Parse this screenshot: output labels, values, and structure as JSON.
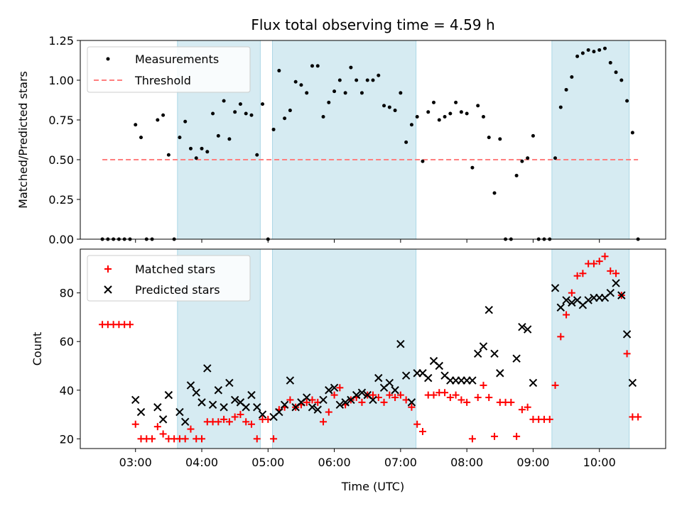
{
  "chart_data": [
    {
      "type": "scatter",
      "title": "Flux total observing time = 4.59 h",
      "xlabel": "",
      "ylabel": "Matched/Predicted stars",
      "xlim": [
        "02:10",
        "11:00"
      ],
      "ylim": [
        0,
        1.25
      ],
      "yticks": [
        0.0,
        0.25,
        0.5,
        0.75,
        1.0,
        1.25
      ],
      "ytick_labels": [
        "0.00",
        "0.25",
        "0.50",
        "0.75",
        "1.00",
        "1.25"
      ],
      "legend_position": "top-left",
      "grid": false,
      "shaded_intervals": [
        [
          "03:38",
          "04:53"
        ],
        [
          "05:04",
          "07:14"
        ],
        [
          "09:17",
          "10:27"
        ]
      ],
      "series": [
        {
          "name": "Measurements",
          "marker": "dot",
          "color": "#000000",
          "x": [
            "02:30",
            "02:35",
            "02:40",
            "02:45",
            "02:50",
            "02:55",
            "03:00",
            "03:05",
            "03:10",
            "03:15",
            "03:20",
            "03:25",
            "03:30",
            "03:35",
            "03:40",
            "03:45",
            "03:50",
            "03:55",
            "04:00",
            "04:05",
            "04:10",
            "04:15",
            "04:20",
            "04:25",
            "04:30",
            "04:35",
            "04:40",
            "04:45",
            "04:50",
            "04:55",
            "05:00",
            "05:05",
            "05:10",
            "05:15",
            "05:20",
            "05:25",
            "05:30",
            "05:35",
            "05:40",
            "05:45",
            "05:50",
            "05:55",
            "06:00",
            "06:05",
            "06:10",
            "06:15",
            "06:20",
            "06:25",
            "06:30",
            "06:35",
            "06:40",
            "06:45",
            "06:50",
            "06:55",
            "07:00",
            "07:05",
            "07:10",
            "07:15",
            "07:20",
            "07:25",
            "07:30",
            "07:35",
            "07:40",
            "07:45",
            "07:50",
            "07:55",
            "08:00",
            "08:05",
            "08:10",
            "08:15",
            "08:20",
            "08:25",
            "08:30",
            "08:35",
            "08:40",
            "08:45",
            "08:50",
            "08:55",
            "09:00",
            "09:05",
            "09:10",
            "09:15",
            "09:20",
            "09:25",
            "09:30",
            "09:35",
            "09:40",
            "09:45",
            "09:50",
            "09:55",
            "10:00",
            "10:05",
            "10:10",
            "10:15",
            "10:20",
            "10:25",
            "10:30",
            "10:35"
          ],
          "y": [
            0,
            0,
            0,
            0,
            0,
            0,
            0.72,
            0.64,
            0,
            0,
            0.75,
            0.78,
            0.53,
            0,
            0.64,
            0.74,
            0.57,
            0.51,
            0.57,
            0.55,
            0.79,
            0.65,
            0.87,
            0.63,
            0.8,
            0.85,
            0.79,
            0.78,
            0.53,
            0.85,
            0,
            0.69,
            1.06,
            0.76,
            0.81,
            0.99,
            0.97,
            0.92,
            1.09,
            1.09,
            0.77,
            0.86,
            0.93,
            1.0,
            0.92,
            1.08,
            1.0,
            0.92,
            1.0,
            1.0,
            1.03,
            0.84,
            0.83,
            0.81,
            0.92,
            0.61,
            0.72,
            0.77,
            0.49,
            0.8,
            0.86,
            0.75,
            0.77,
            0.79,
            0.86,
            0.8,
            0.79,
            0.45,
            0.84,
            0.77,
            0.64,
            0.29,
            0.63,
            0,
            0,
            0.4,
            0.49,
            0.51,
            0.65,
            0,
            0,
            0,
            0.51,
            0.83,
            0.94,
            1.02,
            1.15,
            1.17,
            1.19,
            1.18,
            1.19,
            1.2,
            1.11,
            1.05,
            1.0,
            0.87,
            0.67,
            0
          ]
        },
        {
          "name": "Threshold",
          "style": "dashed",
          "color": "#ff7f7f",
          "x": [
            "02:30",
            "10:35"
          ],
          "y": [
            0.5,
            0.5
          ]
        }
      ]
    },
    {
      "type": "scatter",
      "title": "",
      "xlabel": "Time (UTC)",
      "ylabel": "Count",
      "xlim": [
        "02:10",
        "11:00"
      ],
      "ylim": [
        16,
        98
      ],
      "yticks": [
        20,
        40,
        60,
        80
      ],
      "ytick_labels": [
        "20",
        "40",
        "60",
        "80"
      ],
      "xticks": [
        "03:00",
        "04:00",
        "05:00",
        "06:00",
        "07:00",
        "08:00",
        "09:00",
        "10:00"
      ],
      "xtick_labels": [
        "03:00",
        "04:00",
        "05:00",
        "06:00",
        "07:00",
        "08:00",
        "09:00",
        "10:00"
      ],
      "legend_position": "top-left",
      "grid": false,
      "shaded_intervals": [
        [
          "03:38",
          "04:53"
        ],
        [
          "05:04",
          "07:14"
        ],
        [
          "09:17",
          "10:27"
        ]
      ],
      "series": [
        {
          "name": "Matched stars",
          "marker": "plus",
          "color": "#ff0000",
          "x": [
            "02:30",
            "02:35",
            "02:40",
            "02:45",
            "02:50",
            "02:55",
            "03:00",
            "03:05",
            "03:10",
            "03:15",
            "03:20",
            "03:25",
            "03:30",
            "03:35",
            "03:40",
            "03:45",
            "03:50",
            "03:55",
            "04:00",
            "04:05",
            "04:10",
            "04:15",
            "04:20",
            "04:25",
            "04:30",
            "04:35",
            "04:40",
            "04:45",
            "04:50",
            "04:55",
            "05:00",
            "05:05",
            "05:10",
            "05:15",
            "05:20",
            "05:25",
            "05:30",
            "05:35",
            "05:40",
            "05:45",
            "05:50",
            "05:55",
            "06:00",
            "06:05",
            "06:10",
            "06:15",
            "06:20",
            "06:25",
            "06:30",
            "06:35",
            "06:40",
            "06:45",
            "06:50",
            "06:55",
            "07:00",
            "07:05",
            "07:10",
            "07:15",
            "07:20",
            "07:25",
            "07:30",
            "07:35",
            "07:40",
            "07:45",
            "07:50",
            "07:55",
            "08:00",
            "08:05",
            "08:10",
            "08:15",
            "08:20",
            "08:25",
            "08:30",
            "08:35",
            "08:40",
            "08:45",
            "08:50",
            "08:55",
            "09:00",
            "09:05",
            "09:10",
            "09:15",
            "09:20",
            "09:25",
            "09:30",
            "09:35",
            "09:40",
            "09:45",
            "09:50",
            "09:55",
            "10:00",
            "10:05",
            "10:10",
            "10:15",
            "10:20",
            "10:25",
            "10:30",
            "10:35"
          ],
          "y": [
            67,
            67,
            67,
            67,
            67,
            67,
            26,
            20,
            20,
            20,
            25,
            22,
            20,
            20,
            20,
            20,
            24,
            20,
            20,
            27,
            27,
            27,
            28,
            27,
            29,
            30,
            27,
            26,
            20,
            28,
            28,
            20,
            32,
            33,
            36,
            33,
            34,
            35,
            36,
            35,
            27,
            31,
            38,
            41,
            34,
            36,
            37,
            35,
            38,
            38,
            37,
            35,
            38,
            37,
            38,
            36,
            33,
            26,
            23,
            38,
            38,
            39,
            39,
            37,
            38,
            36,
            35,
            20,
            37,
            42,
            37,
            21,
            35,
            35,
            35,
            21,
            32,
            33,
            28,
            28,
            28,
            28,
            42,
            62,
            71,
            80,
            87,
            88,
            92,
            92,
            93,
            95,
            89,
            88,
            79,
            55,
            29,
            29
          ]
        },
        {
          "name": "Predicted stars",
          "marker": "x",
          "color": "#000000",
          "x": [
            "03:00",
            "03:05",
            "03:20",
            "03:25",
            "03:30",
            "03:40",
            "03:45",
            "03:50",
            "03:55",
            "04:00",
            "04:05",
            "04:10",
            "04:15",
            "04:20",
            "04:25",
            "04:30",
            "04:35",
            "04:40",
            "04:45",
            "04:50",
            "04:55",
            "05:05",
            "05:10",
            "05:15",
            "05:20",
            "05:25",
            "05:30",
            "05:35",
            "05:40",
            "05:45",
            "05:50",
            "05:55",
            "06:00",
            "06:05",
            "06:10",
            "06:15",
            "06:20",
            "06:25",
            "06:30",
            "06:35",
            "06:40",
            "06:45",
            "06:50",
            "06:55",
            "07:00",
            "07:05",
            "07:10",
            "07:15",
            "07:20",
            "07:25",
            "07:30",
            "07:35",
            "07:40",
            "07:45",
            "07:50",
            "07:55",
            "08:00",
            "08:05",
            "08:10",
            "08:15",
            "08:20",
            "08:25",
            "08:30",
            "08:45",
            "08:50",
            "08:55",
            "09:00",
            "09:20",
            "09:25",
            "09:30",
            "09:35",
            "09:40",
            "09:45",
            "09:50",
            "09:55",
            "10:00",
            "10:05",
            "10:10",
            "10:15",
            "10:20",
            "10:25",
            "10:30"
          ],
          "y": [
            36,
            31,
            33,
            28,
            38,
            31,
            27,
            42,
            39,
            35,
            49,
            34,
            40,
            33,
            43,
            36,
            35,
            33,
            38,
            33,
            30,
            29,
            31,
            34,
            44,
            33,
            35,
            37,
            33,
            32,
            36,
            40,
            41,
            34,
            35,
            36,
            38,
            39,
            38,
            36,
            45,
            41,
            43,
            40,
            59,
            46,
            35,
            47,
            47,
            45,
            52,
            50,
            46,
            44,
            44,
            44,
            44,
            44,
            55,
            58,
            73,
            55,
            47,
            53,
            66,
            65,
            43,
            82,
            74,
            77,
            76,
            77,
            75,
            77,
            78,
            78,
            78,
            80,
            84,
            79,
            63,
            43
          ]
        }
      ]
    }
  ]
}
